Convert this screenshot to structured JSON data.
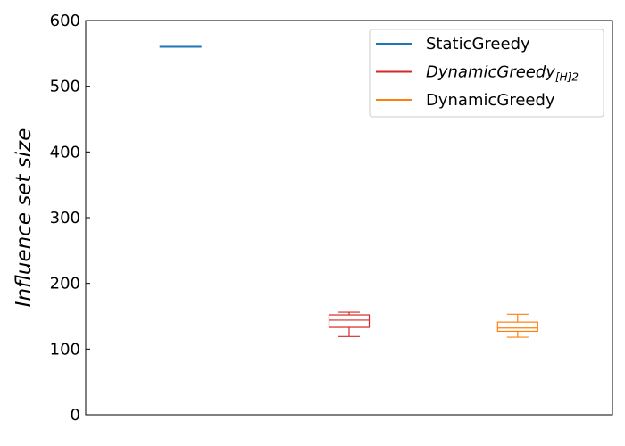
{
  "chart_data": {
    "type": "box",
    "title": "",
    "xlabel": "",
    "ylabel": "Influence set size",
    "ylim": [
      0,
      600
    ],
    "yticks": [
      "0",
      "100",
      "200",
      "300",
      "400",
      "500",
      "600"
    ],
    "grid": false,
    "legend_position": "top-right",
    "series": [
      {
        "name": "StaticGreedy",
        "color": "#1f77b4",
        "whisker_low": 560,
        "q1": 560,
        "median": 560,
        "q3": 560,
        "whisker_high": 560
      },
      {
        "name": "DynamicGreedy",
        "name_subscript": "[H]2",
        "color": "#d62728",
        "whisker_low": 119,
        "q1": 133,
        "median": 144,
        "q3": 152,
        "whisker_high": 156
      },
      {
        "name": "DynamicGreedy",
        "color": "#ff7f0e",
        "whisker_low": 118,
        "q1": 127,
        "median": 132,
        "q3": 141,
        "whisker_high": 153
      }
    ]
  }
}
